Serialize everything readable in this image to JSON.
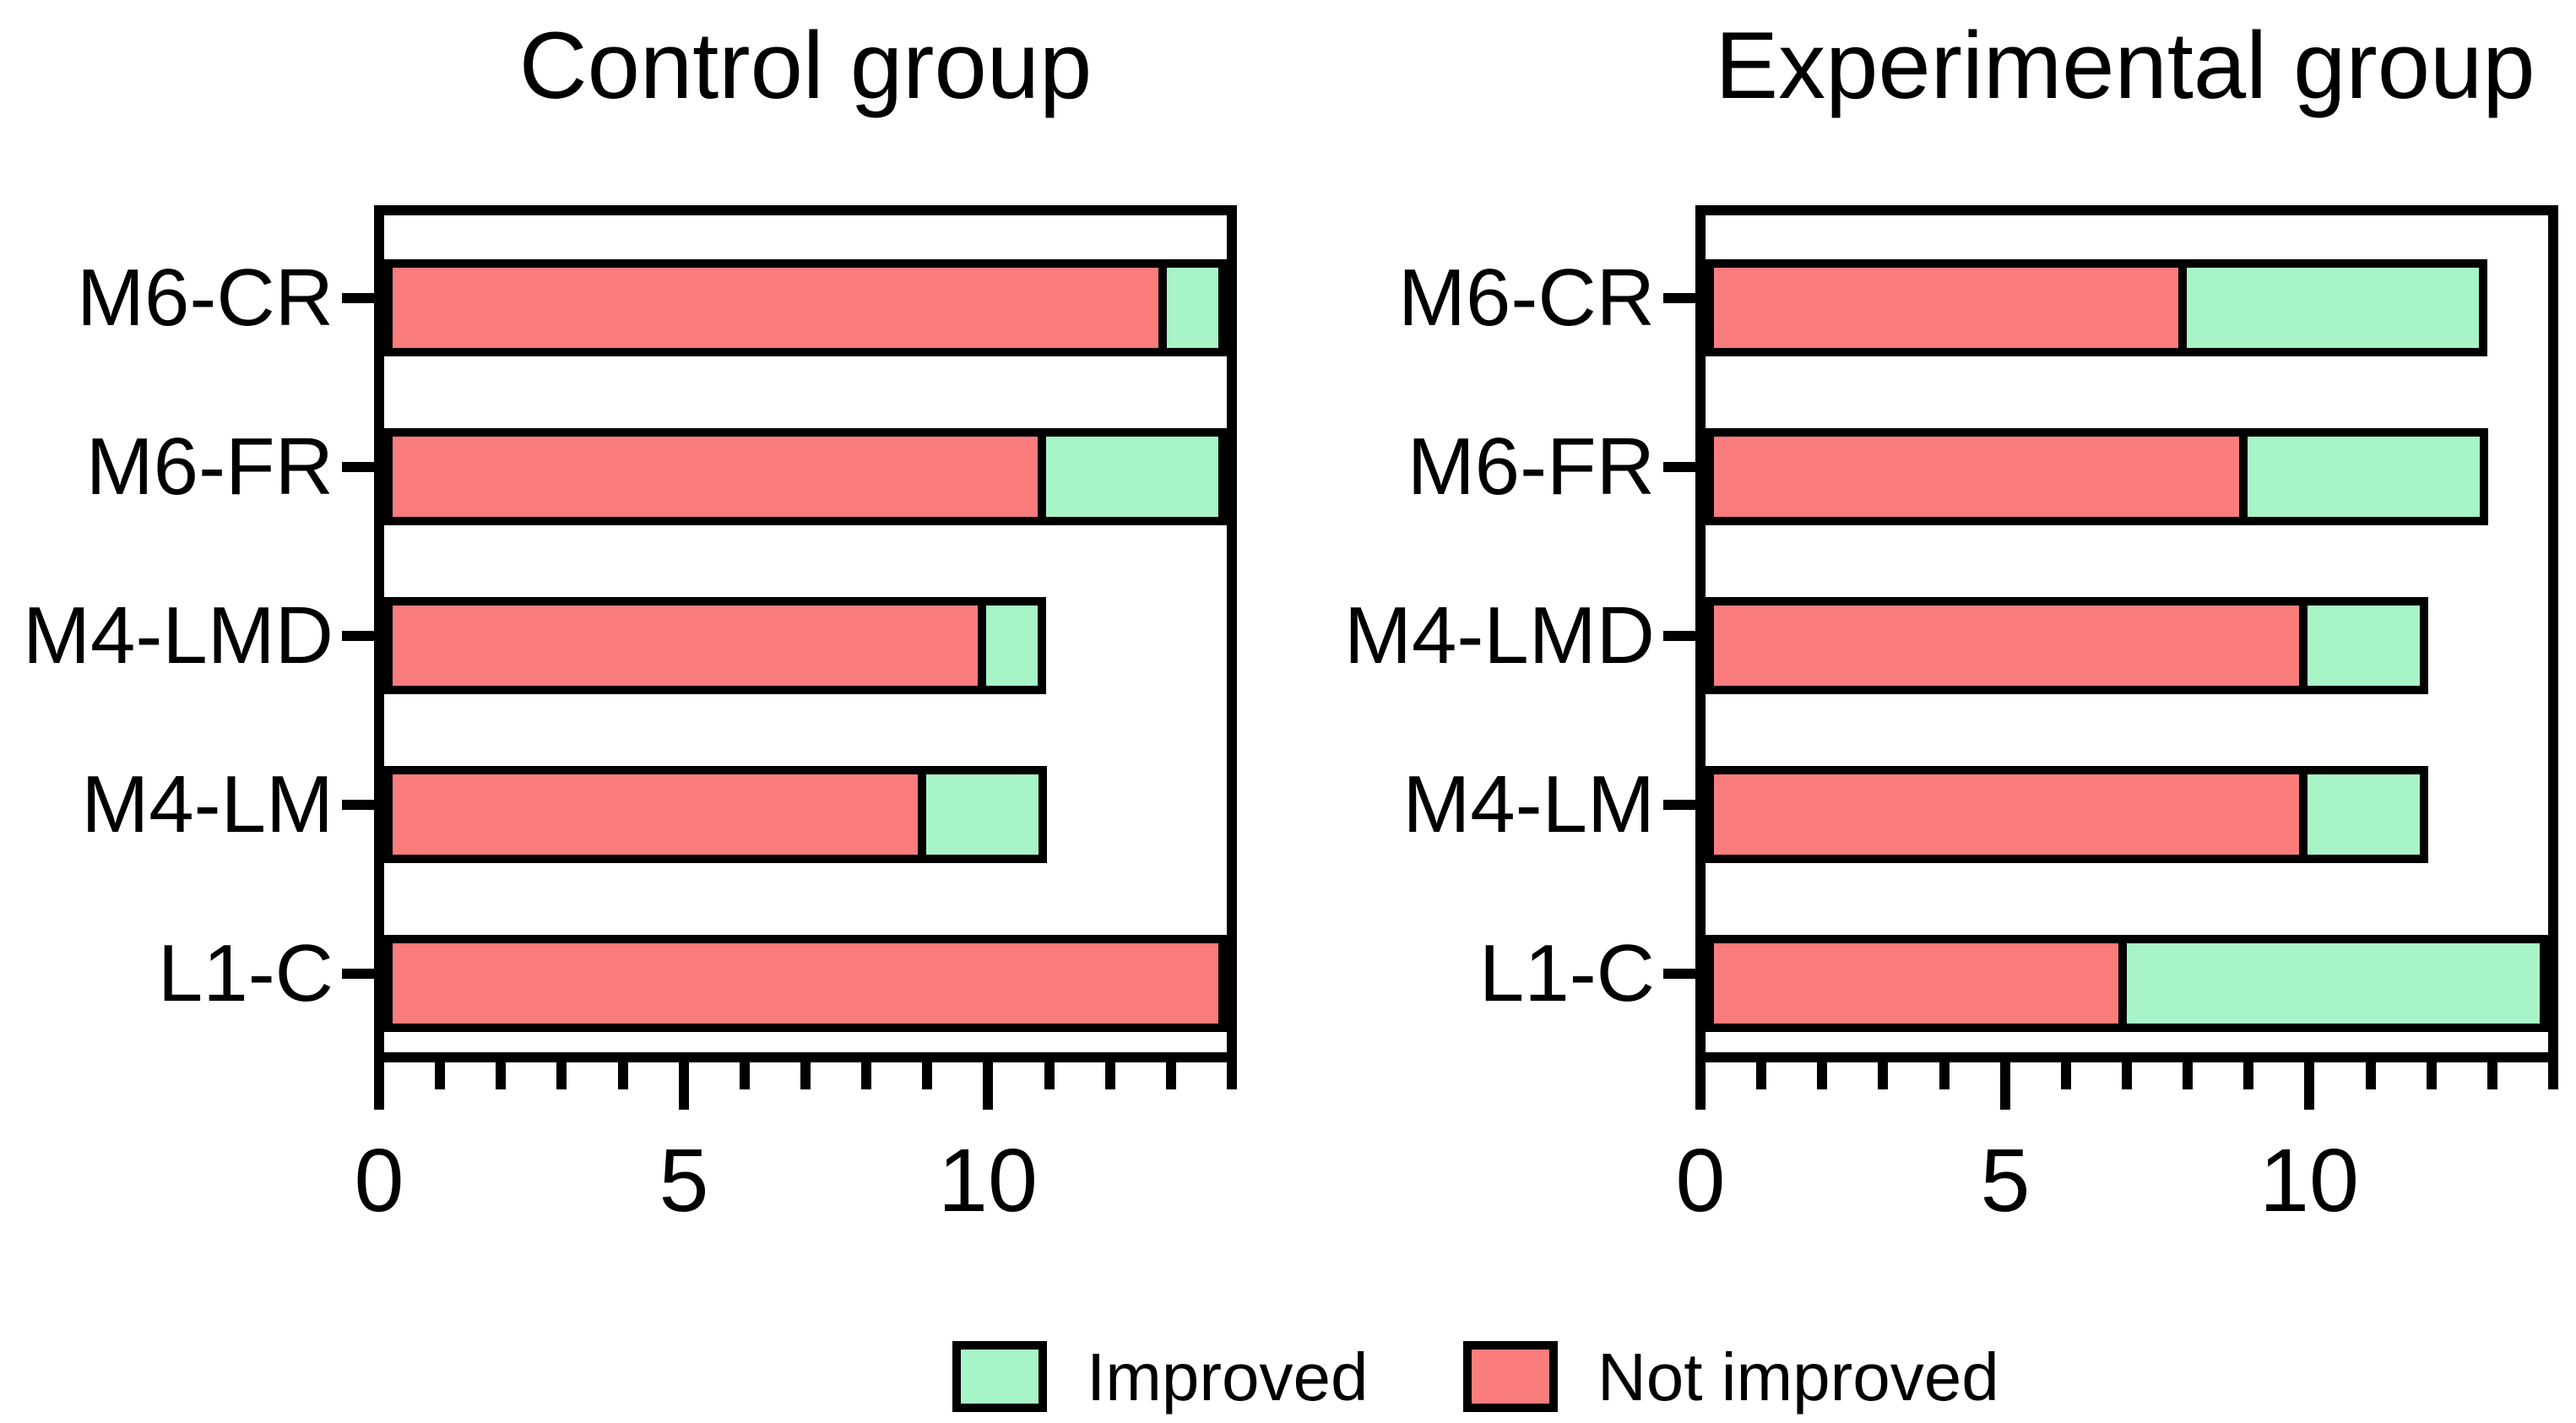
{
  "figure": {
    "legend": {
      "items": [
        {
          "label": "Improved",
          "color": "#A7F5C6"
        },
        {
          "label": "Not improved",
          "color": "#FB7C7C"
        }
      ]
    }
  },
  "chart_data": [
    {
      "type": "bar",
      "orientation": "horizontal",
      "stacked": true,
      "title": "Control group",
      "categories": [
        "M6-CR",
        "M6-FR",
        "M4-LMD",
        "M4-LM",
        "L1-C"
      ],
      "series": [
        {
          "name": "Not improved",
          "color": "#FB7C7C",
          "values": [
            13,
            11,
            10,
            9,
            14
          ]
        },
        {
          "name": "Improved",
          "color": "#A7F5C6",
          "values": [
            1,
            3,
            1,
            2,
            0
          ]
        }
      ],
      "xlim": [
        0,
        14
      ],
      "xticks_labeled": [
        0,
        5,
        10
      ],
      "minor_tick_step": 1,
      "grid": false,
      "legend_position": "bottom"
    },
    {
      "type": "bar",
      "orientation": "horizontal",
      "stacked": true,
      "title": "Experimental group",
      "categories": [
        "M6-CR",
        "M6-FR",
        "M4-LMD",
        "M4-LM",
        "L1-C"
      ],
      "series": [
        {
          "name": "Not improved",
          "color": "#FB7C7C",
          "values": [
            8,
            9,
            10,
            10,
            7
          ]
        },
        {
          "name": "Improved",
          "color": "#A7F5C6",
          "values": [
            5,
            4,
            2,
            2,
            7
          ]
        }
      ],
      "xlim": [
        0,
        14
      ],
      "xticks_labeled": [
        0,
        5,
        10
      ],
      "minor_tick_step": 1,
      "grid": false,
      "legend_position": "bottom"
    }
  ]
}
